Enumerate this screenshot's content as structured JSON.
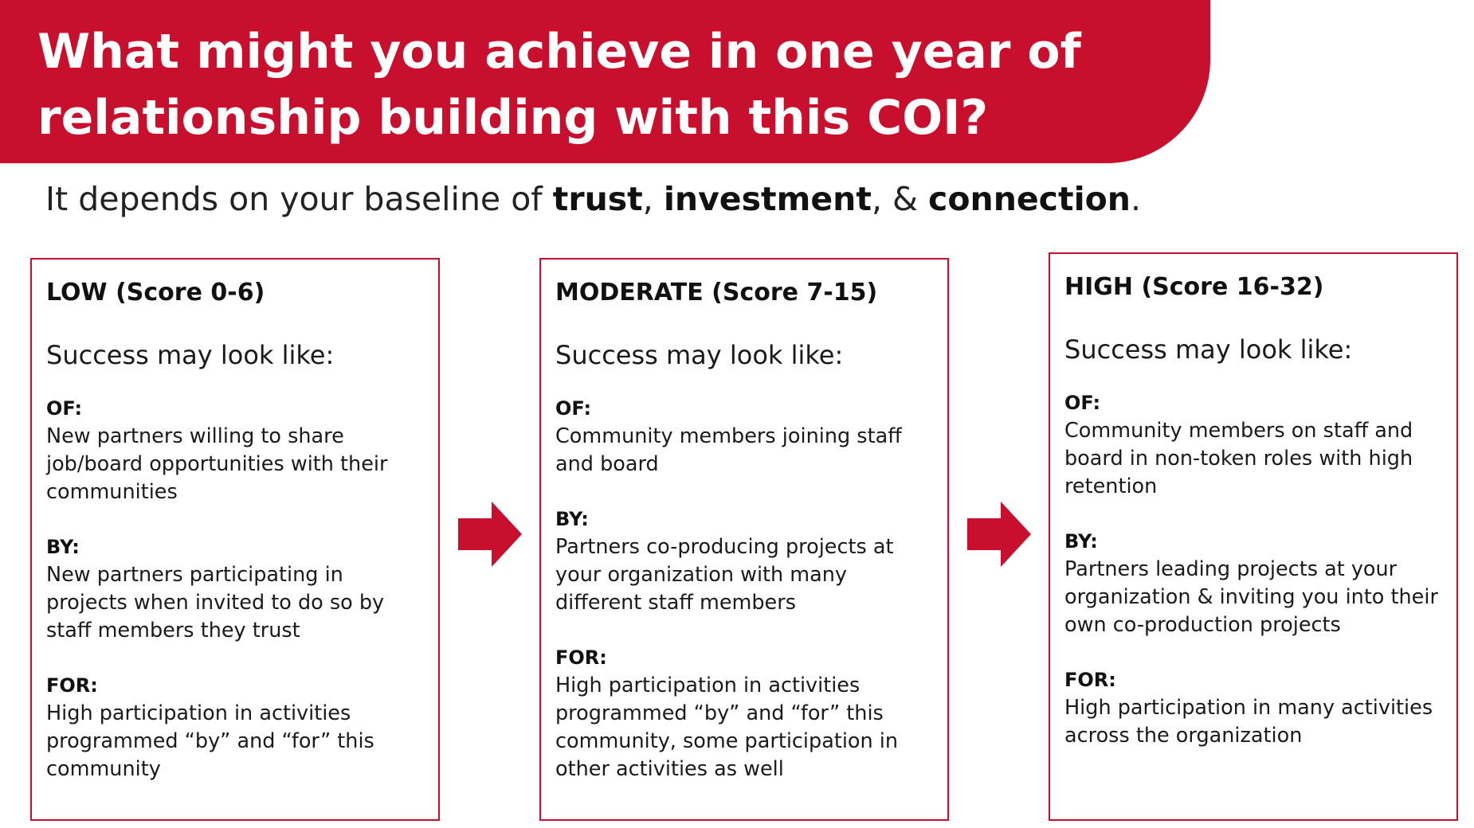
{
  "header": {
    "title": "What might you achieve in one year of relationship building with this COI?"
  },
  "subtitle": {
    "prefix": "It depends on your baseline of ",
    "term1": "trust",
    "sep1": ", ",
    "term2": "investment",
    "sep2": ", & ",
    "term3": "connection",
    "suffix": "."
  },
  "cards": [
    {
      "title": "LOW (Score 0-6)",
      "subhead": "Success may look like:",
      "sections": [
        {
          "label": "OF:",
          "text": "New partners willing to share job/board opportunities with their communities"
        },
        {
          "label": "BY:",
          "text": "New partners participating in projects when invited to do so by staff members they trust"
        },
        {
          "label": "FOR:",
          "text": "High participation in activities programmed “by” and “for” this community"
        }
      ]
    },
    {
      "title": "MODERATE (Score 7-15)",
      "subhead": "Success may look like:",
      "sections": [
        {
          "label": "OF:",
          "text": "Community members joining staff and board"
        },
        {
          "label": "BY:",
          "text": "Partners co-producing projects at your organization with many different staff members"
        },
        {
          "label": "FOR:",
          "text": "High participation in activities programmed “by” and “for” this community, some participation in other activities as well"
        }
      ]
    },
    {
      "title": "HIGH (Score 16-32)",
      "subhead": "Success may look like:",
      "sections": [
        {
          "label": "OF:",
          "text": "Community members on staff and board in non-token roles with high retention"
        },
        {
          "label": "BY:",
          "text": "Partners leading projects at your organization & inviting you into their own co-production projects"
        },
        {
          "label": "FOR:",
          "text": "High participation in many activities across the organization"
        }
      ]
    }
  ],
  "arrows": [
    "arrow-right-icon",
    "arrow-right-icon"
  ],
  "colors": {
    "accent": "#c8102e",
    "text": "#1a1a1a",
    "background": "#ffffff"
  }
}
